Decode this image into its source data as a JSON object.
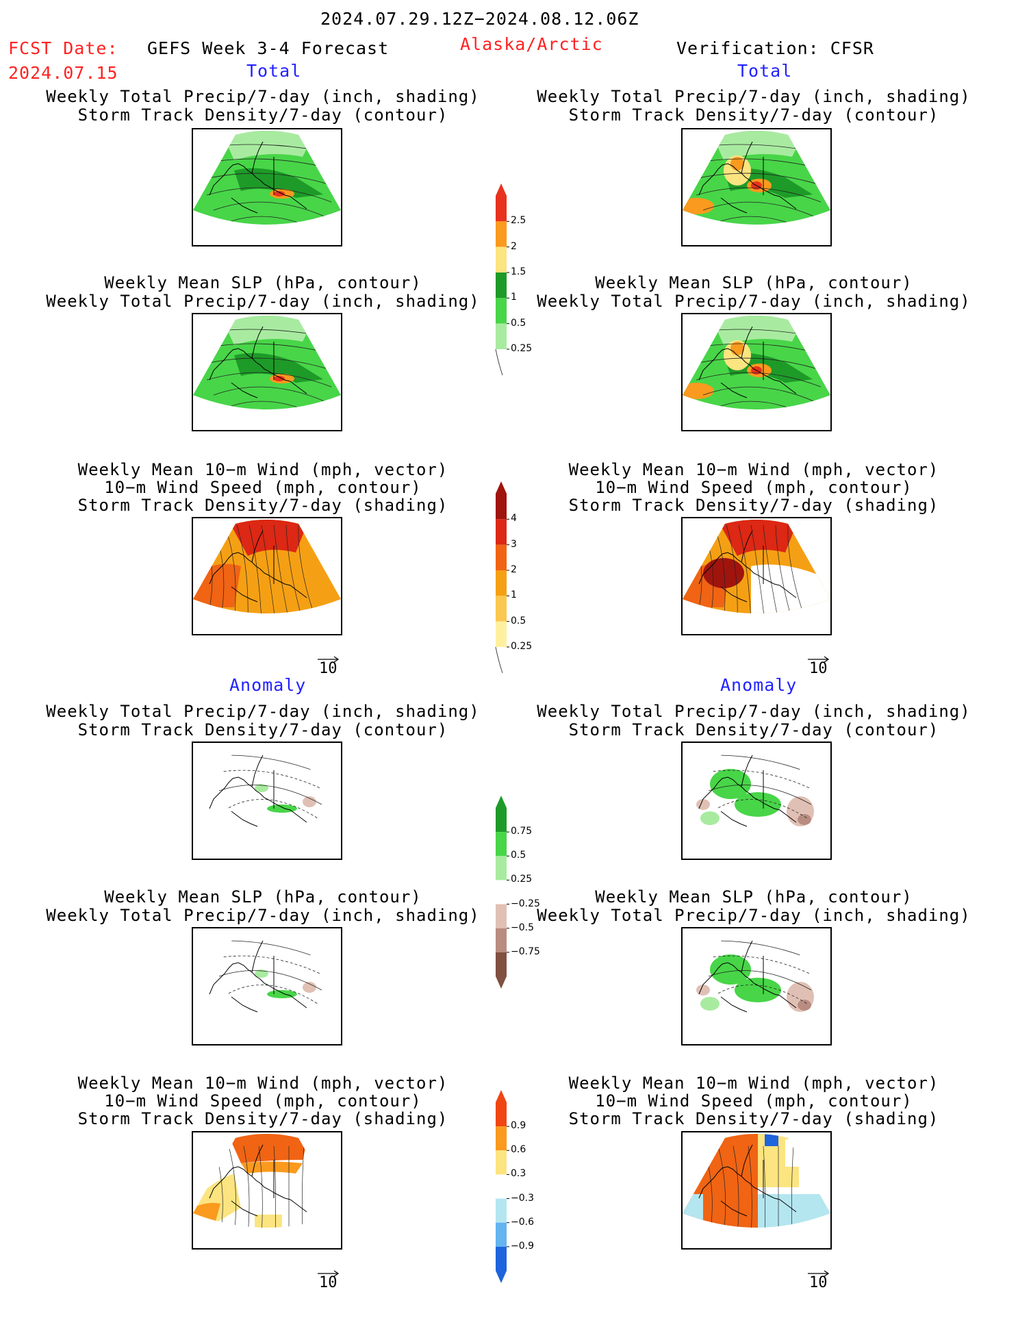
{
  "header": {
    "date_range": "2024.07.29.12Z−2024.08.12.06Z",
    "fcst_label": "FCST Date:",
    "fcst_date": "2024.07.15",
    "model": "GEFS Week 3-4 Forecast",
    "region": "Alaska/Arctic",
    "verification": "Verification: CFSR"
  },
  "sections": {
    "total_label": "Total",
    "anomaly_label": "Anomaly"
  },
  "titles": {
    "precip_track": [
      "Weekly Total Precip/7-day (inch, shading)",
      "Storm Track Density/7-day (contour)"
    ],
    "slp_precip": [
      "Weekly Mean SLP (hPa, contour)",
      "Weekly Total Precip/7-day (inch, shading)"
    ],
    "wind_track": [
      "Weekly Mean 10−m Wind (mph, vector)",
      "10−m Wind Speed (mph, contour)",
      "Storm Track Density/7-day (shading)"
    ]
  },
  "vector_ref": "10",
  "colorbars": {
    "precip_total": {
      "labels": [
        "2.5",
        "2",
        "1.5",
        "1",
        "0.5",
        "0.25"
      ],
      "colors": [
        "#e8321e",
        "#fa9a1e",
        "#fce480",
        "#1e9a28",
        "#48d548",
        "#a8eba0"
      ]
    },
    "track_total": {
      "labels": [
        "4",
        "3",
        "2",
        "1",
        "0.5",
        "0.25"
      ],
      "colors": [
        "#a0140e",
        "#dc2814",
        "#f06414",
        "#f5a014",
        "#fac850",
        "#fff0a0"
      ]
    },
    "precip_anom": {
      "labels": [
        "0.75",
        "0.5",
        "0.25",
        "−0.25",
        "−0.5",
        "−0.75"
      ],
      "colors": [
        "#1e9a28",
        "#48d548",
        "#a8eba0",
        "#ffffff",
        "#e0c0b4",
        "#b88c80",
        "#805040"
      ]
    },
    "track_anom": {
      "labels": [
        "0.9",
        "0.6",
        "0.3",
        "−0.3",
        "−0.6",
        "−0.9"
      ],
      "colors": [
        "#f04614",
        "#fa9a1e",
        "#fce480",
        "#ffffff",
        "#b4e6f0",
        "#64b4f0",
        "#1e64dc"
      ]
    }
  },
  "map_colors": {
    "precip_base": "#48d548",
    "precip_dark": "#1e9a28",
    "precip_light": "#a8eba0",
    "precip_high": "#fa9a1e",
    "precip_peak": "#e8321e",
    "track_base": "#f5a014",
    "track_high": "#f06414",
    "track_peak": "#dc2814",
    "anom_pos": "#48d548",
    "anom_neg": "#e0c0b4",
    "cold": "#b4e6f0"
  }
}
